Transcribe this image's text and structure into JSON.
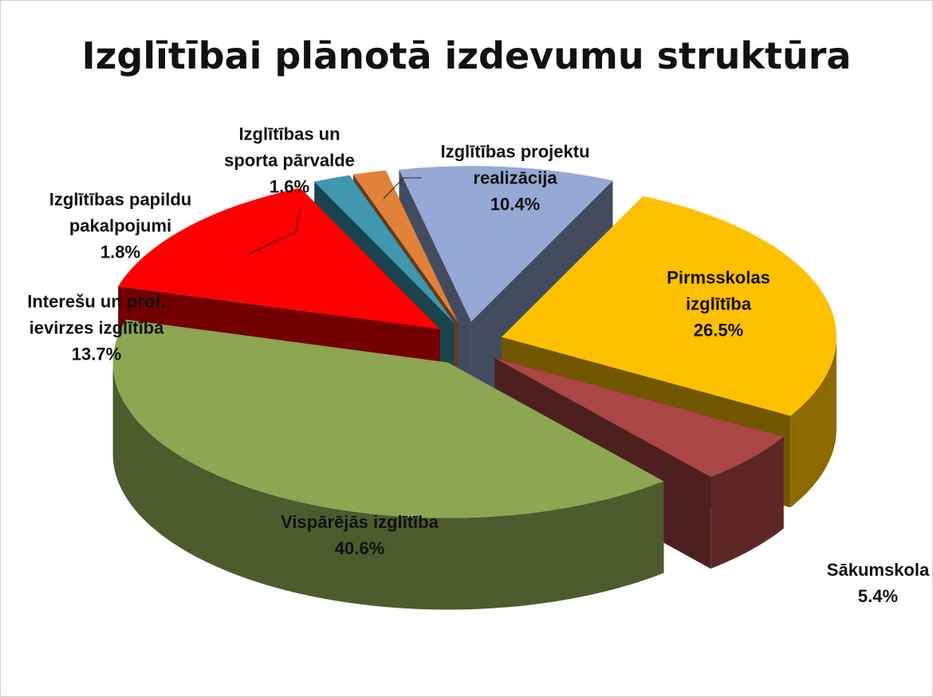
{
  "chart_data": {
    "type": "pie",
    "title": "Izglītībai plānotā izdevumu struktūra",
    "categories": [
      "Pirmsskolas izglītība",
      "Sākumskola",
      "Vispārējās izglītība",
      "Interešu un prof. ievirzes izglītība",
      "Izglītības papildu pakalpojumi",
      "Izglītības un sporta pārvalde",
      "Izglītības projektu realizācija"
    ],
    "values": [
      26.5,
      5.4,
      40.6,
      13.7,
      1.8,
      1.6,
      10.4
    ],
    "value_labels": [
      "26.5%",
      "5.4%",
      "40.6%",
      "13.7%",
      "1.8%",
      "1.6%",
      "10.4%"
    ],
    "colors": [
      "#ffc000",
      "#aa4644",
      "#8ca652",
      "#ff0000",
      "#3f97b0",
      "#e0823a",
      "#94a9d4"
    ]
  }
}
